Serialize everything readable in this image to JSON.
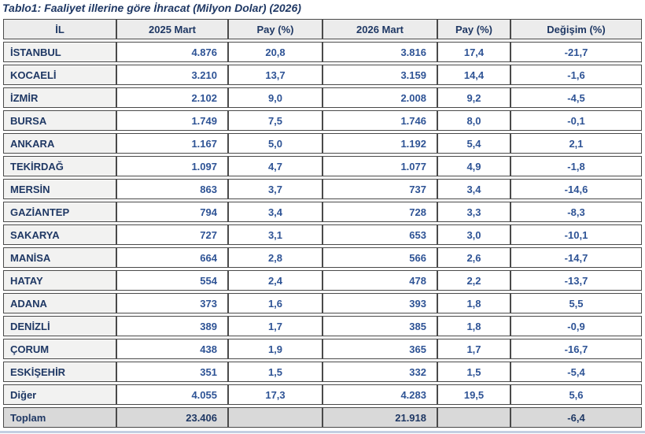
{
  "title": "Tablo1: Faaliyet illerine göre İhracat (Milyon Dolar) (2026)",
  "colors": {
    "header_text": "#1f3864",
    "number_text": "#2e5395",
    "header_bg": "#ececec",
    "name_col_bg": "#f2f2f1",
    "total_row_bg": "#d9d9d9",
    "border": "#4a4a4a",
    "bottom_rule": "#c3cfe2"
  },
  "table": {
    "columns": [
      "İL",
      "2025 Mart",
      "Pay (%)",
      "2026 Mart",
      "Pay (%)",
      "Değişim (%)"
    ],
    "rows": [
      {
        "il": "İSTANBUL",
        "m2025": "4.876",
        "pay2025": "20,8",
        "m2026": "3.816",
        "pay2026": "17,4",
        "degisim": "-21,7"
      },
      {
        "il": "KOCAELİ",
        "m2025": "3.210",
        "pay2025": "13,7",
        "m2026": "3.159",
        "pay2026": "14,4",
        "degisim": "-1,6"
      },
      {
        "il": "İZMİR",
        "m2025": "2.102",
        "pay2025": "9,0",
        "m2026": "2.008",
        "pay2026": "9,2",
        "degisim": "-4,5"
      },
      {
        "il": "BURSA",
        "m2025": "1.749",
        "pay2025": "7,5",
        "m2026": "1.746",
        "pay2026": "8,0",
        "degisim": "-0,1"
      },
      {
        "il": "ANKARA",
        "m2025": "1.167",
        "pay2025": "5,0",
        "m2026": "1.192",
        "pay2026": "5,4",
        "degisim": "2,1"
      },
      {
        "il": "TEKİRDAĞ",
        "m2025": "1.097",
        "pay2025": "4,7",
        "m2026": "1.077",
        "pay2026": "4,9",
        "degisim": "-1,8"
      },
      {
        "il": "MERSİN",
        "m2025": "863",
        "pay2025": "3,7",
        "m2026": "737",
        "pay2026": "3,4",
        "degisim": "-14,6"
      },
      {
        "il": "GAZİANTEP",
        "m2025": "794",
        "pay2025": "3,4",
        "m2026": "728",
        "pay2026": "3,3",
        "degisim": "-8,3"
      },
      {
        "il": "SAKARYA",
        "m2025": "727",
        "pay2025": "3,1",
        "m2026": "653",
        "pay2026": "3,0",
        "degisim": "-10,1"
      },
      {
        "il": "MANİSA",
        "m2025": "664",
        "pay2025": "2,8",
        "m2026": "566",
        "pay2026": "2,6",
        "degisim": "-14,7"
      },
      {
        "il": "HATAY",
        "m2025": "554",
        "pay2025": "2,4",
        "m2026": "478",
        "pay2026": "2,2",
        "degisim": "-13,7"
      },
      {
        "il": "ADANA",
        "m2025": "373",
        "pay2025": "1,6",
        "m2026": "393",
        "pay2026": "1,8",
        "degisim": "5,5"
      },
      {
        "il": "DENİZLİ",
        "m2025": "389",
        "pay2025": "1,7",
        "m2026": "385",
        "pay2026": "1,8",
        "degisim": "-0,9"
      },
      {
        "il": "ÇORUM",
        "m2025": "438",
        "pay2025": "1,9",
        "m2026": "365",
        "pay2026": "1,7",
        "degisim": "-16,7"
      },
      {
        "il": "ESKİŞEHİR",
        "m2025": "351",
        "pay2025": "1,5",
        "m2026": "332",
        "pay2026": "1,5",
        "degisim": "-5,4"
      },
      {
        "il": "Diğer",
        "m2025": "4.055",
        "pay2025": "17,3",
        "m2026": "4.283",
        "pay2026": "19,5",
        "degisim": "5,6"
      }
    ],
    "total": {
      "il": "Toplam",
      "m2025": "23.406",
      "pay2025": "",
      "m2026": "21.918",
      "pay2026": "",
      "degisim": "-6,4"
    }
  }
}
